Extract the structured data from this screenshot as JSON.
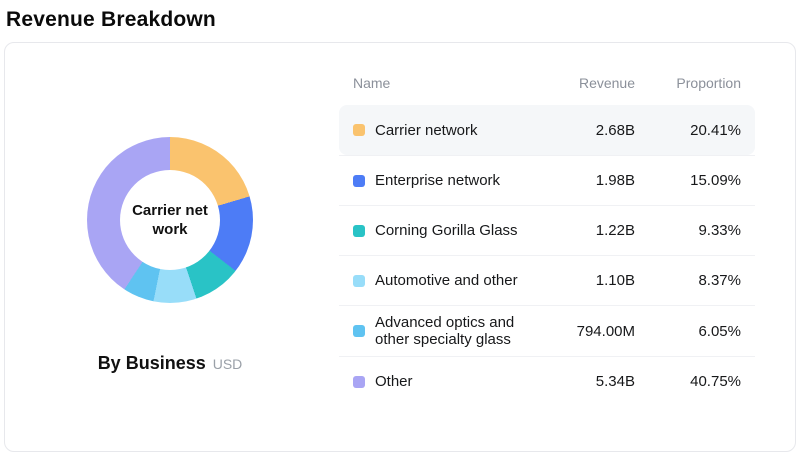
{
  "page_title": "Revenue Breakdown",
  "chart_data": {
    "type": "pie",
    "title": "By Business",
    "unit": "USD",
    "center_label": "Carrier network",
    "center_label_lines": [
      "Carrier net",
      "work"
    ],
    "legend_position": "right-table",
    "start_angle": "top, clockwise",
    "segments": [
      {
        "name": "Carrier network",
        "revenue": "2.68B",
        "proportion": 20.41,
        "proportion_label": "20.41%",
        "color": "#fac36e",
        "highlighted": true
      },
      {
        "name": "Enterprise network",
        "revenue": "1.98B",
        "proportion": 15.09,
        "proportion_label": "15.09%",
        "color": "#4d7cf6",
        "highlighted": false
      },
      {
        "name": "Corning Gorilla Glass",
        "revenue": "1.22B",
        "proportion": 9.33,
        "proportion_label": "9.33%",
        "color": "#29c3c6",
        "highlighted": false
      },
      {
        "name": "Automotive and other",
        "revenue": "1.10B",
        "proportion": 8.37,
        "proportion_label": "8.37%",
        "color": "#98ddf9",
        "highlighted": false
      },
      {
        "name": "Advanced optics and other specialty glass",
        "revenue": "794.00M",
        "proportion": 6.05,
        "proportion_label": "6.05%",
        "color": "#5fc3f1",
        "highlighted": false
      },
      {
        "name": "Other",
        "revenue": "5.34B",
        "proportion": 40.75,
        "proportion_label": "40.75%",
        "color": "#a9a5f4",
        "highlighted": false
      }
    ]
  },
  "table": {
    "headers": {
      "name": "Name",
      "revenue": "Revenue",
      "proportion": "Proportion"
    }
  }
}
